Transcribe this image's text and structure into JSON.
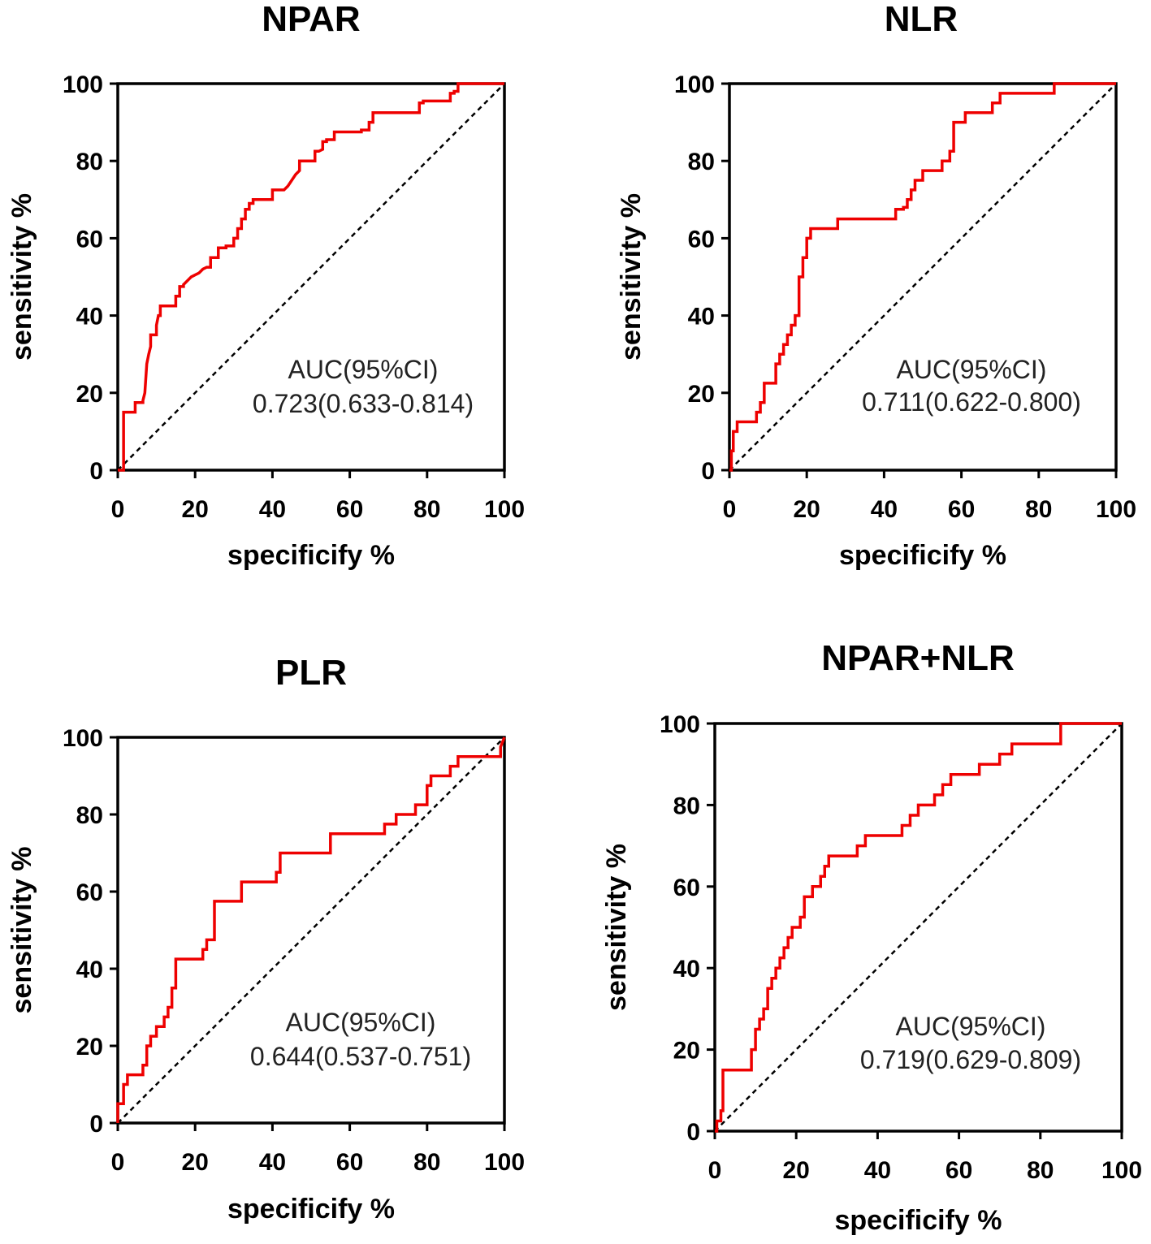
{
  "colors": {
    "roc": "#ee0000",
    "axis": "#000000",
    "diagonal": "#000000"
  },
  "chart_data": [
    {
      "type": "line",
      "title": "NPAR",
      "xlabel": "specificify %",
      "ylabel": "sensitivity %",
      "xlim": [
        0,
        100
      ],
      "ylim": [
        0,
        100
      ],
      "xticks": [
        "0",
        "20",
        "40",
        "60",
        "80",
        "100"
      ],
      "yticks": [
        "0",
        "20",
        "40",
        "60",
        "80",
        "100"
      ],
      "auc_label": "AUC(95%CI)",
      "auc_value": "0.723(0.633-0.814)",
      "series": [
        {
          "name": "NPAR",
          "x": [
            0,
            1.5,
            1.5,
            4.5,
            4.5,
            6.5,
            6.5,
            7,
            7.5,
            8,
            8.5,
            8.5,
            10,
            10,
            10.5,
            11,
            11,
            15,
            15,
            16,
            16,
            17,
            17,
            18,
            19,
            20,
            21,
            22,
            23,
            24,
            24,
            26,
            26,
            28,
            28,
            30,
            30,
            31,
            31,
            32,
            32,
            33,
            33,
            34,
            34,
            35,
            35,
            40,
            40,
            43,
            44,
            45,
            46,
            47,
            47,
            50,
            51,
            51,
            52,
            53,
            53,
            54,
            54,
            56,
            56,
            58,
            58,
            63,
            63,
            65,
            65,
            66,
            66,
            78,
            78,
            79,
            79,
            86,
            86,
            87,
            87,
            88,
            88,
            100
          ],
          "y": [
            0,
            0,
            15,
            15,
            17.5,
            17.5,
            18,
            20,
            27.5,
            30,
            32,
            35,
            35,
            37.5,
            40,
            40,
            42.5,
            42.5,
            45,
            45,
            47.5,
            47.5,
            48,
            49,
            50,
            50.5,
            51,
            52,
            52.5,
            52.5,
            55,
            55,
            57.5,
            57.5,
            58,
            58,
            60,
            60,
            62.5,
            62.5,
            65,
            65,
            67.5,
            67.5,
            69,
            69,
            70,
            70,
            72.5,
            72.5,
            73.5,
            75,
            76.5,
            77.5,
            80,
            80,
            80,
            82.5,
            82.5,
            83,
            85,
            85,
            85.5,
            85.5,
            87.5,
            87.5,
            87.5,
            87.5,
            88,
            88,
            90,
            90,
            92.5,
            92.5,
            95,
            95,
            95.5,
            95.5,
            97.5,
            97.5,
            98,
            98,
            100,
            100
          ]
        }
      ]
    },
    {
      "type": "line",
      "title": "NLR",
      "xlabel": "specificify %",
      "ylabel": "sensitivity %",
      "xlim": [
        0,
        100
      ],
      "ylim": [
        0,
        100
      ],
      "xticks": [
        "0",
        "20",
        "40",
        "60",
        "80",
        "100"
      ],
      "yticks": [
        "0",
        "20",
        "40",
        "60",
        "80",
        "100"
      ],
      "auc_label": "AUC(95%CI)",
      "auc_value": "0.711(0.622-0.800)",
      "series": [
        {
          "name": "NLR",
          "x": [
            0,
            0.5,
            0.5,
            1,
            1,
            2,
            2,
            7,
            7,
            8,
            8,
            9,
            9,
            12,
            12,
            13,
            13,
            14,
            14,
            15,
            15,
            16,
            16,
            17,
            17,
            18,
            18,
            19,
            19,
            20,
            20,
            21,
            21,
            28,
            28,
            43,
            43,
            45,
            45,
            46,
            46,
            47,
            47,
            48,
            48,
            50,
            50,
            55,
            55,
            57,
            57,
            58,
            58,
            61,
            61,
            62,
            62,
            68,
            68,
            70,
            70,
            72,
            72,
            84,
            84,
            85,
            85,
            100
          ],
          "y": [
            0,
            0,
            5,
            5,
            10,
            10,
            12.5,
            12.5,
            15,
            15,
            17.5,
            17.5,
            22.5,
            22.5,
            27.5,
            27.5,
            30,
            30,
            32.5,
            32.5,
            35,
            35,
            37.5,
            37.5,
            40,
            40,
            50,
            50,
            55,
            55,
            60,
            60,
            62.5,
            62.5,
            65,
            65,
            67.5,
            67.5,
            68,
            68,
            70,
            70,
            72.5,
            72.5,
            75,
            75,
            77.5,
            77.5,
            80,
            80,
            82.5,
            82.5,
            90,
            90,
            92.5,
            92.5,
            92.5,
            92.5,
            95,
            95,
            97.5,
            97.5,
            97.5,
            97.5,
            100,
            100,
            100,
            100
          ]
        }
      ]
    },
    {
      "type": "line",
      "title": "PLR",
      "xlabel": "specificify %",
      "ylabel": "sensitivity %",
      "xlim": [
        0,
        100
      ],
      "ylim": [
        0,
        100
      ],
      "xticks": [
        "0",
        "20",
        "40",
        "60",
        "80",
        "100"
      ],
      "yticks": [
        "0",
        "20",
        "40",
        "60",
        "80",
        "100"
      ],
      "auc_label": "AUC(95%CI)",
      "auc_value": "0.644(0.537-0.751)",
      "series": [
        {
          "name": "PLR",
          "x": [
            0,
            0,
            1.5,
            1.5,
            2.5,
            2.5,
            6.5,
            6.5,
            7.5,
            7.5,
            8.5,
            8.5,
            10,
            10,
            12,
            12,
            13,
            13,
            14,
            14,
            15,
            15,
            22,
            22,
            23,
            23,
            25,
            25,
            32,
            32,
            41,
            41,
            42,
            42,
            55,
            55,
            69,
            69,
            70,
            70,
            72,
            72,
            77,
            77,
            80,
            80,
            81,
            81,
            86,
            86,
            88,
            88,
            92,
            92,
            99,
            99,
            100
          ],
          "y": [
            0,
            5,
            5,
            10,
            10,
            12.5,
            12.5,
            15,
            15,
            20,
            20,
            22.5,
            22.5,
            25,
            25,
            27.5,
            27.5,
            30,
            30,
            35,
            35,
            42.5,
            42.5,
            45,
            45,
            47.5,
            47.5,
            57.5,
            57.5,
            62.5,
            62.5,
            65,
            65,
            70,
            70,
            75,
            75,
            77.5,
            77.5,
            77.5,
            77.5,
            80,
            80,
            82.5,
            82.5,
            87.5,
            87.5,
            90,
            90,
            92.5,
            92.5,
            95,
            95,
            95,
            95,
            97.5,
            100
          ]
        }
      ]
    },
    {
      "type": "line",
      "title": "NPAR+NLR",
      "xlabel": "specificify %",
      "ylabel": "sensitivity %",
      "xlim": [
        0,
        100
      ],
      "ylim": [
        0,
        100
      ],
      "xticks": [
        "0",
        "20",
        "40",
        "60",
        "80",
        "100"
      ],
      "yticks": [
        "0",
        "20",
        "40",
        "60",
        "80",
        "100"
      ],
      "auc_label": "AUC(95%CI)",
      "auc_value": "0.719(0.629-0.809)",
      "series": [
        {
          "name": "NPAR+NLR",
          "x": [
            0,
            0.5,
            0.5,
            1.5,
            1.5,
            2,
            2,
            9,
            9,
            10,
            10,
            11,
            11,
            12,
            12,
            13,
            13,
            14,
            14,
            15,
            15,
            16,
            16,
            17,
            17,
            18,
            18,
            19,
            19,
            20,
            20,
            21,
            21,
            22,
            22,
            24,
            24,
            26,
            26,
            27,
            27,
            28,
            28,
            29,
            29,
            35,
            35,
            37,
            37,
            39,
            39,
            46,
            46,
            48,
            48,
            50,
            50,
            54,
            54,
            56,
            56,
            58,
            58,
            60,
            60,
            65,
            65,
            70,
            70,
            73,
            73,
            75,
            75,
            85,
            85,
            100
          ],
          "y": [
            0,
            0,
            2.5,
            2.5,
            5,
            5,
            15,
            15,
            20,
            20,
            25,
            25,
            27.5,
            27.5,
            30,
            30,
            35,
            35,
            37.5,
            37.5,
            40,
            40,
            42.5,
            42.5,
            45,
            45,
            47.5,
            47.5,
            50,
            50,
            50,
            50,
            52.5,
            52.5,
            57.5,
            57.5,
            60,
            60,
            62.5,
            62.5,
            65,
            65,
            67.5,
            67.5,
            67.5,
            67.5,
            70,
            70,
            72.5,
            72.5,
            72.5,
            72.5,
            75,
            75,
            77.5,
            77.5,
            80,
            80,
            82.5,
            82.5,
            85,
            85,
            87.5,
            87.5,
            87.5,
            87.5,
            90,
            90,
            92.5,
            92.5,
            95,
            95,
            95,
            95,
            100,
            100
          ]
        }
      ]
    }
  ]
}
